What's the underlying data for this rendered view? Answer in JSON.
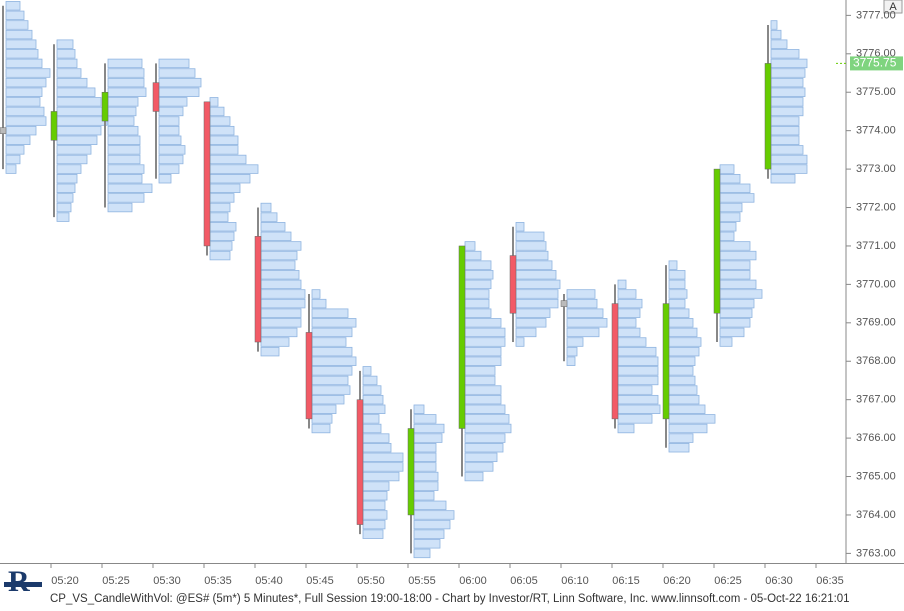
{
  "chart_data": {
    "type": "candlestick",
    "categories": [
      null,
      "05:20",
      "05:25",
      "05:30",
      "05:35",
      "05:40",
      "05:45",
      "05:50",
      "05:55",
      "06:00",
      "06:05",
      "06:10",
      "06:15",
      "06:20",
      "06:25",
      "06:30",
      "06:35"
    ],
    "open": [
      3774.0,
      3773.75,
      3774.25,
      3775.25,
      3774.75,
      3771.25,
      3768.75,
      3767.0,
      3764.0,
      3766.25,
      3770.75,
      3769.5,
      3769.5,
      3766.5,
      3769.25,
      3773.0,
      null
    ],
    "high": [
      3777.25,
      3776.25,
      3775.75,
      3775.75,
      3774.75,
      3772.0,
      3769.75,
      3767.75,
      3766.75,
      3771.0,
      3771.5,
      3769.75,
      3770.0,
      3770.5,
      3773.0,
      3776.75,
      null
    ],
    "low": [
      3773.0,
      3771.75,
      3772.0,
      3772.75,
      3770.75,
      3768.25,
      3766.25,
      3763.5,
      3763.0,
      3765.0,
      3768.5,
      3768.0,
      3766.25,
      3765.75,
      3768.5,
      3772.75,
      null
    ],
    "close": [
      3774.0,
      3774.5,
      3775.0,
      3774.5,
      3771.0,
      3768.5,
      3766.5,
      3763.75,
      3766.25,
      3771.0,
      3769.25,
      3769.5,
      3766.5,
      3769.5,
      3773.0,
      3775.75,
      null
    ],
    "tick_size": 0.25,
    "volume_profile": [
      [
        14,
        18,
        22,
        26,
        30,
        32,
        36,
        44,
        40,
        36,
        34,
        38,
        40,
        30,
        24,
        18,
        14,
        10
      ],
      [
        16,
        18,
        20,
        24,
        30,
        38,
        44,
        46,
        50,
        44,
        40,
        34,
        30,
        24,
        20,
        18,
        16,
        14,
        12
      ],
      [
        34,
        36,
        36,
        38,
        30,
        28,
        26,
        30,
        32,
        32,
        32,
        36,
        34,
        44,
        36,
        24
      ],
      [
        30,
        36,
        42,
        40,
        28,
        24,
        20,
        20,
        22,
        26,
        24,
        20,
        12
      ],
      [
        8,
        14,
        20,
        24,
        28,
        28,
        36,
        48,
        40,
        30,
        24,
        20,
        18,
        26,
        24,
        22,
        20
      ],
      [
        10,
        16,
        24,
        30,
        40,
        36,
        34,
        38,
        40,
        44,
        44,
        40,
        40,
        36,
        28,
        18
      ],
      [
        8,
        14,
        36,
        44,
        40,
        34,
        40,
        44,
        40,
        36,
        38,
        32,
        24,
        20,
        18
      ],
      [
        8,
        14,
        18,
        20,
        22,
        16,
        18,
        26,
        28,
        40,
        40,
        36,
        26,
        24,
        22,
        24,
        22,
        20
      ],
      [
        10,
        22,
        30,
        28,
        22,
        22,
        22,
        24,
        24,
        20,
        32,
        40,
        36,
        30,
        26,
        16
      ],
      [
        10,
        16,
        26,
        28,
        26,
        24,
        24,
        26,
        36,
        40,
        40,
        36,
        36,
        30,
        30,
        36,
        36,
        40,
        44,
        46,
        40,
        38,
        32,
        28,
        18
      ],
      [
        8,
        28,
        30,
        32,
        36,
        40,
        44,
        42,
        42,
        34,
        30,
        20,
        8
      ],
      [
        28,
        30,
        36,
        40,
        32,
        16,
        10,
        8
      ],
      [
        8,
        18,
        24,
        22,
        18,
        22,
        28,
        38,
        40,
        40,
        40,
        34,
        40,
        42,
        34,
        16
      ],
      [
        8,
        16,
        16,
        18,
        16,
        20,
        24,
        28,
        32,
        30,
        26,
        24,
        26,
        28,
        30,
        36,
        46,
        38,
        24,
        20
      ],
      [
        14,
        20,
        30,
        34,
        22,
        20,
        16,
        14,
        30,
        36,
        30,
        30,
        36,
        42,
        34,
        32,
        30,
        24,
        12
      ],
      [
        6,
        10,
        16,
        28,
        36,
        34,
        32,
        34,
        32,
        32,
        28,
        28,
        28,
        32,
        36,
        36,
        24
      ],
      null
    ],
    "up_color": "#66cc00",
    "down_color": "#f25a66",
    "doji_color": "#bbbbbb",
    "profile_color": "#cfe2f8",
    "ylim": [
      3762.75,
      3777.4
    ],
    "yticks": [
      {
        "value": 3763,
        "label": "3763.00"
      },
      {
        "value": 3764,
        "label": "3764.00"
      },
      {
        "value": 3765,
        "label": "3765.00"
      },
      {
        "value": 3766,
        "label": "3766.00"
      },
      {
        "value": 3767,
        "label": "3767.00"
      },
      {
        "value": 3768,
        "label": "3768.00"
      },
      {
        "value": 3769,
        "label": "3769.00"
      },
      {
        "value": 3770,
        "label": "3770.00"
      },
      {
        "value": 3771,
        "label": "3771.00"
      },
      {
        "value": 3772,
        "label": "3772.00"
      },
      {
        "value": 3773,
        "label": "3773.00"
      },
      {
        "value": 3774,
        "label": "3774.00"
      },
      {
        "value": 3775,
        "label": "3775.00"
      },
      {
        "value": 3776,
        "label": "3776.00"
      },
      {
        "value": 3777,
        "label": "3777.00"
      }
    ],
    "last_price": {
      "value": 3775.75,
      "label": "3775.75"
    },
    "corner_label": "A",
    "footer": "CP_VS_CandleWithVol: @ES# (5m*) 5 Minutes*, Full Session 19:00-18:00 - Chart by Investor/RT, Linn Software, Inc. www.linnsoft.com - 05-Oct-22 16:21:01"
  }
}
